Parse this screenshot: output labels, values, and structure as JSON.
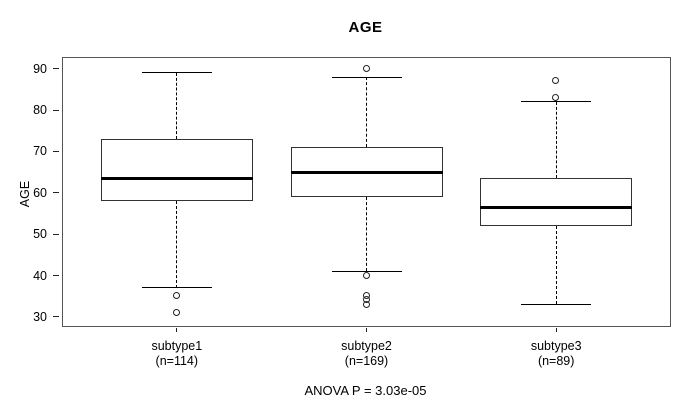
{
  "title": "AGE",
  "y_axis": {
    "label": "AGE"
  },
  "footer": "ANOVA P = 3.03e-05",
  "chart_data": {
    "type": "boxplot",
    "title": "AGE",
    "xlabel": "",
    "ylabel": "AGE",
    "ylim": [
      27.8,
      92.6
    ],
    "yticks": [
      30,
      40,
      50,
      60,
      70,
      80,
      90
    ],
    "grid": false,
    "annotation": "ANOVA P = 3.03e-05",
    "groups": [
      {
        "label": "subtype1",
        "n_label": "(n=114)",
        "n": 114,
        "whisker_low": 37,
        "q1": 58,
        "median": 63.5,
        "q3": 73,
        "whisker_high": 89,
        "outliers": [
          35,
          31
        ]
      },
      {
        "label": "subtype2",
        "n_label": "(n=169)",
        "n": 169,
        "whisker_low": 41,
        "q1": 59,
        "median": 65,
        "q3": 71,
        "whisker_high": 88,
        "outliers": [
          90,
          40,
          35,
          34,
          33
        ]
      },
      {
        "label": "subtype3",
        "n_label": "(n=89)",
        "n": 89,
        "whisker_low": 33,
        "q1": 52,
        "median": 56.5,
        "q3": 63.5,
        "whisker_high": 82,
        "outliers": [
          87,
          83
        ]
      }
    ]
  }
}
